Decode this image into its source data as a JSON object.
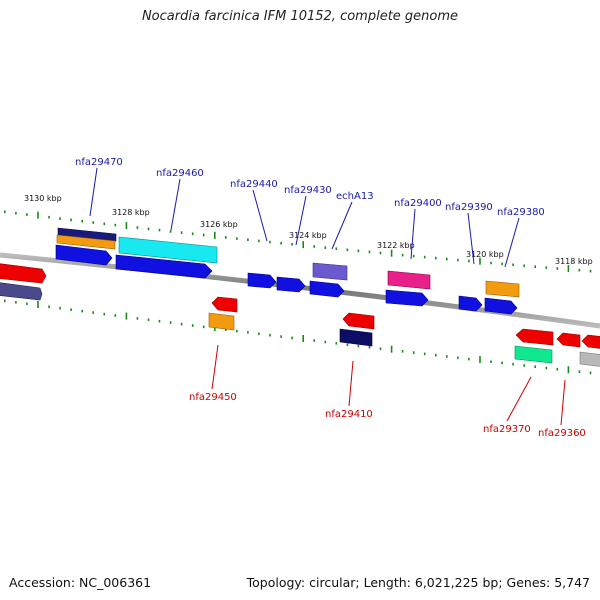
{
  "title": "Nocardia farcinica IFM 10152, complete genome",
  "footer": {
    "accession": "Accession: NC_006361",
    "summary": "Topology: circular; Length: 6,021,225 bp; Genes: 5,747"
  },
  "colors": {
    "forward_label": "#1a1aaa",
    "reverse_label": "#cc0000",
    "tick": "#1a8a1a",
    "backbone": "#888888"
  },
  "ticks": [
    "3130 kbp",
    "3128 kbp",
    "3126 kbp",
    "3124 kbp",
    "3122 kbp",
    "3120 kbp",
    "3118 kbp"
  ],
  "genes": {
    "forward": [
      "nfa29470",
      "nfa29460",
      "nfa29440",
      "nfa29430",
      "echA13",
      "nfa29400",
      "nfa29390",
      "nfa29380"
    ],
    "reverse": [
      "nfa29450",
      "nfa29410",
      "nfa29370",
      "nfa29360"
    ]
  }
}
